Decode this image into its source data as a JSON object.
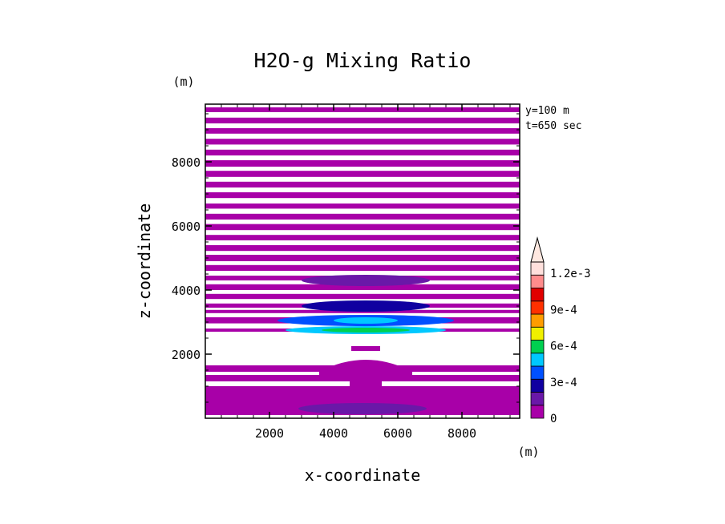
{
  "chart_data": {
    "type": "heatmap",
    "title": "H2O-g Mixing Ratio",
    "xlabel": "x-coordinate",
    "ylabel": "z-coordinate",
    "x_unit": "(m)",
    "y_unit": "(m)",
    "info_lines": [
      "y=100 m",
      "t=650 sec"
    ],
    "xlim": [
      0,
      9800
    ],
    "ylim": [
      0,
      9800
    ],
    "x_ticks": [
      2000,
      4000,
      6000,
      8000
    ],
    "y_ticks": [
      2000,
      4000,
      6000,
      8000
    ],
    "x_tick_labels": [
      "2000",
      "4000",
      "6000",
      "8000"
    ],
    "y_tick_labels": [
      "2000",
      "4000",
      "6000",
      "8000"
    ],
    "colorbar": {
      "levels": [
        0,
        0.00015,
        0.0003,
        0.00045,
        0.0006,
        0.00075,
        0.0009,
        0.00105,
        0.0012,
        0.00135
      ],
      "colors": [
        "#a800a8",
        "#6a18a8",
        "#1000a0",
        "#0050ff",
        "#00c8ff",
        "#00d050",
        "#f0f000",
        "#ff9c00",
        "#ff3000",
        "#e00000",
        "#ff8c8c",
        "#ffe0dc"
      ],
      "tick_labels": [
        "0",
        "3e-4",
        "6e-4",
        "9e-4",
        "1.2e-3"
      ],
      "tick_values": [
        0,
        0.0003,
        0.0006,
        0.0009,
        0.0012
      ],
      "extend": "max"
    },
    "horizontal_bands_z": [
      [
        100,
        1000
      ],
      [
        1150,
        1350
      ],
      [
        1450,
        1650
      ],
      [
        2700,
        2800
      ],
      [
        2960,
        3150
      ],
      [
        3280,
        3380
      ],
      [
        3450,
        3580
      ],
      [
        3720,
        3880
      ],
      [
        4000,
        4180
      ],
      [
        4300,
        4450
      ],
      [
        4600,
        4780
      ],
      [
        4900,
        5100
      ],
      [
        5220,
        5400
      ],
      [
        5550,
        5720
      ],
      [
        5870,
        6060
      ],
      [
        6200,
        6380
      ],
      [
        6540,
        6700
      ],
      [
        6870,
        7050
      ],
      [
        7200,
        7380
      ],
      [
        7530,
        7720
      ],
      [
        7850,
        8050
      ],
      [
        8200,
        8380
      ],
      [
        8540,
        8720
      ],
      [
        8880,
        9050
      ],
      [
        9200,
        9380
      ],
      [
        9550,
        9700
      ]
    ],
    "moist_features": [
      {
        "x": 5000,
        "z": 2750,
        "level": 0.0006
      },
      {
        "x": 5000,
        "z": 3050,
        "level": 0.00045
      },
      {
        "x": 5000,
        "z": 3500,
        "level": 0.0003
      },
      {
        "x": 5000,
        "z": 4300,
        "level": 0.00015
      },
      {
        "x": 4900,
        "z": 300,
        "level": 0.00015
      }
    ]
  }
}
